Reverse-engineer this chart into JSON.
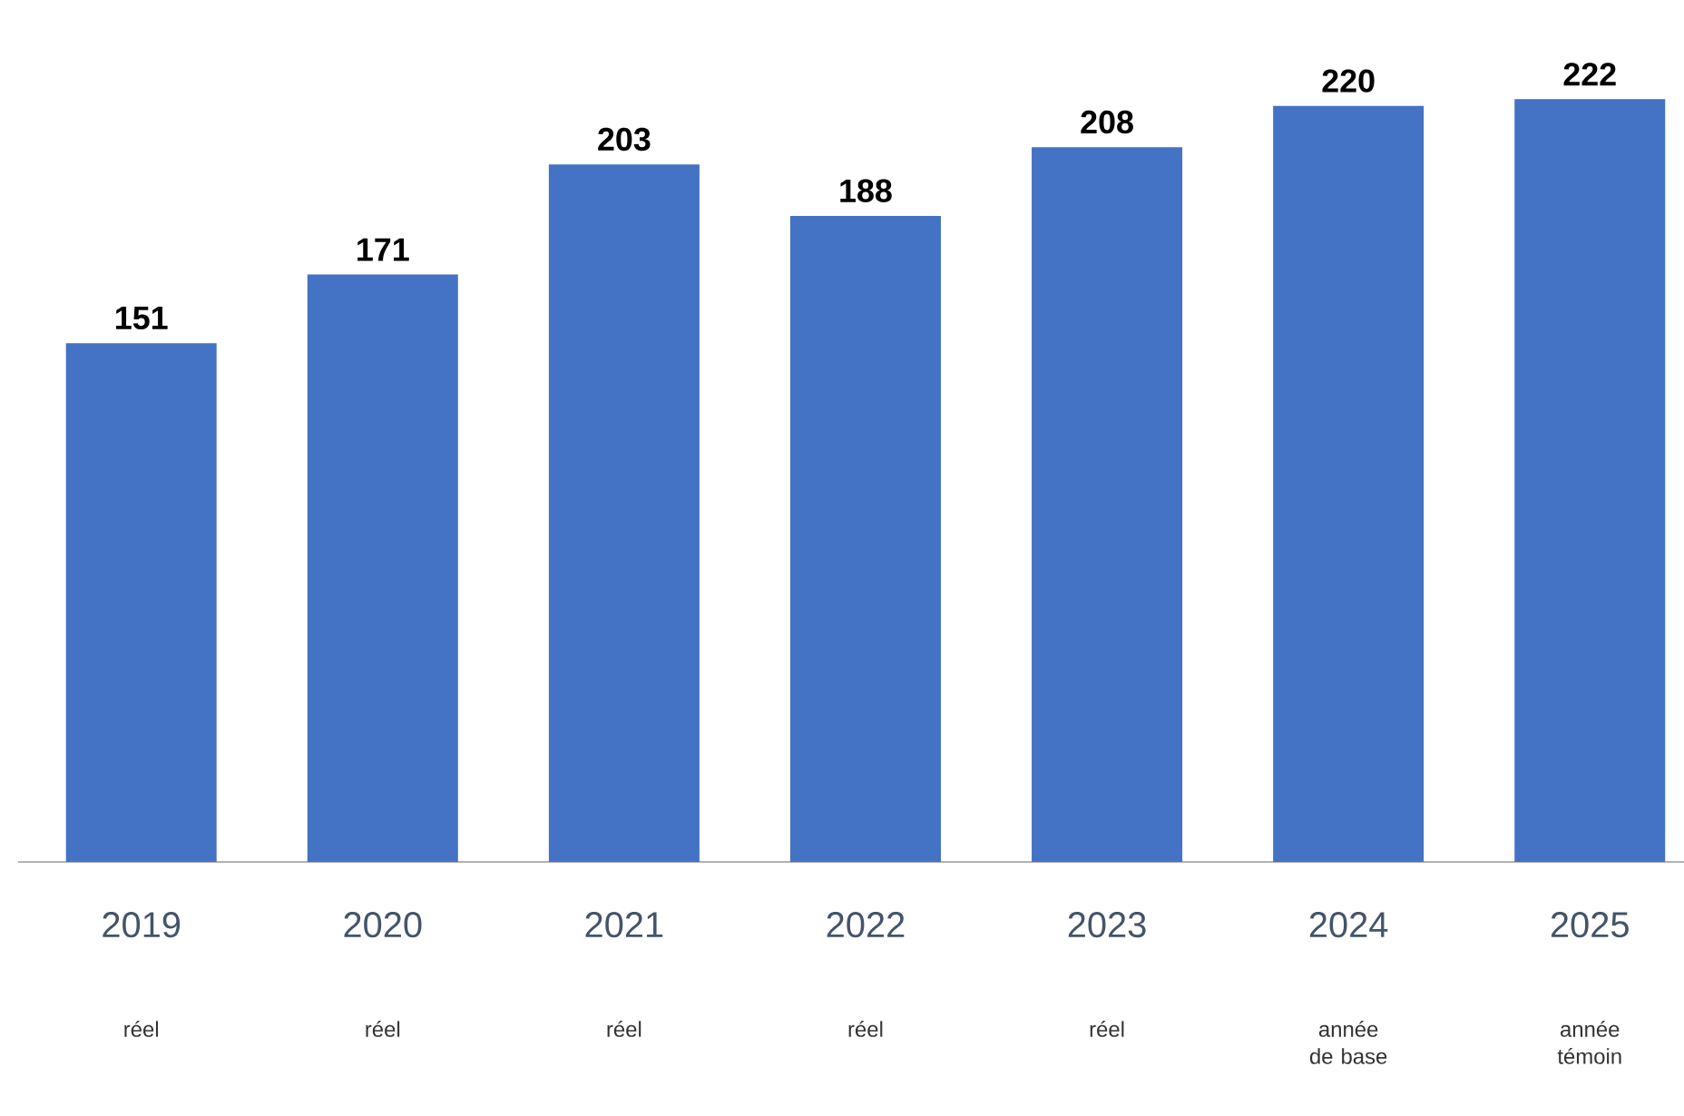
{
  "chart_data": {
    "type": "bar",
    "categories": [
      "2019",
      "2020",
      "2021",
      "2022",
      "2023",
      "2024",
      "2025"
    ],
    "values": [
      151,
      171,
      203,
      188,
      208,
      220,
      222
    ],
    "color": "#4472c4",
    "tick_labels": "x",
    "data_labels": true,
    "annotations": [
      "réel",
      "réel",
      "réel",
      "réel",
      "réel",
      "année de base",
      "année témoin"
    ]
  }
}
